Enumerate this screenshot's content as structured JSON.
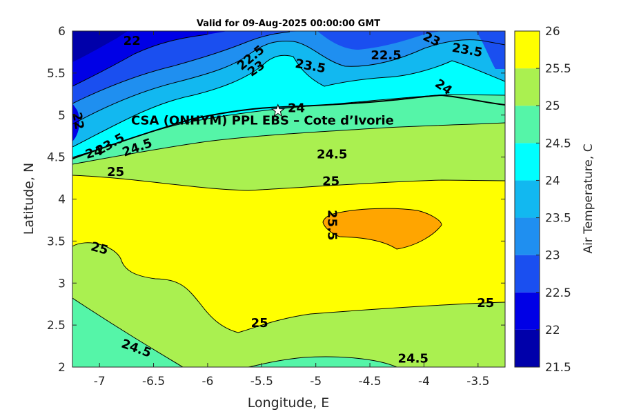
{
  "chart_data": {
    "type": "contour",
    "title": "Valid for 09-Aug-2025 00:00:00 GMT",
    "xlabel": "Longitude, E",
    "ylabel": "Latitude, N",
    "xlim": [
      -7.25,
      -3.25
    ],
    "ylim": [
      2,
      6
    ],
    "xticks": [
      -7,
      -6.5,
      -6,
      -5.5,
      -5,
      -4.5,
      -4,
      -3.5
    ],
    "yticks": [
      2,
      2.5,
      3,
      3.5,
      4,
      4.5,
      5,
      5.5,
      6
    ],
    "colorbar": {
      "label": "Air Temperature, C",
      "levels": [
        21.5,
        22,
        22.5,
        23,
        23.5,
        24,
        24.5,
        25,
        25.5,
        26
      ],
      "colors": [
        "#0000aa",
        "#0000e6",
        "#1a4ff0",
        "#1f8ff0",
        "#12b8f0",
        "#00ffff",
        "#55f5a8",
        "#aaf050",
        "#ffff00",
        "#ffa500",
        "#ff5500"
      ]
    },
    "contour_labels": [
      {
        "text": "22",
        "lon": -6.7,
        "lat": 5.88,
        "angle": 0
      },
      {
        "text": "22.5",
        "lon": -5.6,
        "lat": 5.68,
        "angle": -40
      },
      {
        "text": "23",
        "lon": -5.55,
        "lat": 5.55,
        "angle": -35
      },
      {
        "text": "23.5",
        "lon": -5.05,
        "lat": 5.58,
        "angle": 10
      },
      {
        "text": "22.5",
        "lon": -4.35,
        "lat": 5.71,
        "angle": 0
      },
      {
        "text": "23",
        "lon": -3.93,
        "lat": 5.9,
        "angle": 25
      },
      {
        "text": "23.5",
        "lon": -3.6,
        "lat": 5.77,
        "angle": 10
      },
      {
        "text": "24",
        "lon": -3.82,
        "lat": 5.33,
        "angle": 35
      },
      {
        "text": "22",
        "lon": -7.2,
        "lat": 4.93,
        "angle": 80
      },
      {
        "text": "23.5",
        "lon": -6.9,
        "lat": 4.65,
        "angle": -30
      },
      {
        "text": "24",
        "lon": -7.05,
        "lat": 4.55,
        "angle": -15
      },
      {
        "text": "24.5",
        "lon": -6.65,
        "lat": 4.61,
        "angle": -20
      },
      {
        "text": "24",
        "lon": -5.18,
        "lat": 5.08,
        "angle": 0
      },
      {
        "text": "24.5",
        "lon": -4.85,
        "lat": 4.53,
        "angle": 0
      },
      {
        "text": "25",
        "lon": -6.85,
        "lat": 4.32,
        "angle": 0
      },
      {
        "text": "25",
        "lon": -4.86,
        "lat": 4.21,
        "angle": 0
      },
      {
        "text": "25.5",
        "lon": -4.85,
        "lat": 3.69,
        "angle": 90
      },
      {
        "text": "25",
        "lon": -7.0,
        "lat": 3.41,
        "angle": 15
      },
      {
        "text": "25",
        "lon": -3.43,
        "lat": 2.76,
        "angle": 0
      },
      {
        "text": "25",
        "lon": -5.52,
        "lat": 2.52,
        "angle": 0
      },
      {
        "text": "24.5",
        "lon": -6.66,
        "lat": 2.22,
        "angle": 20
      },
      {
        "text": "24.5",
        "lon": -4.1,
        "lat": 2.1,
        "angle": 0
      }
    ],
    "site": {
      "label": "CSA (ONHYM) PPL EBS  – Cote d’Ivorie",
      "lon": -5.35,
      "lat": 5.05,
      "marker": "star"
    }
  }
}
